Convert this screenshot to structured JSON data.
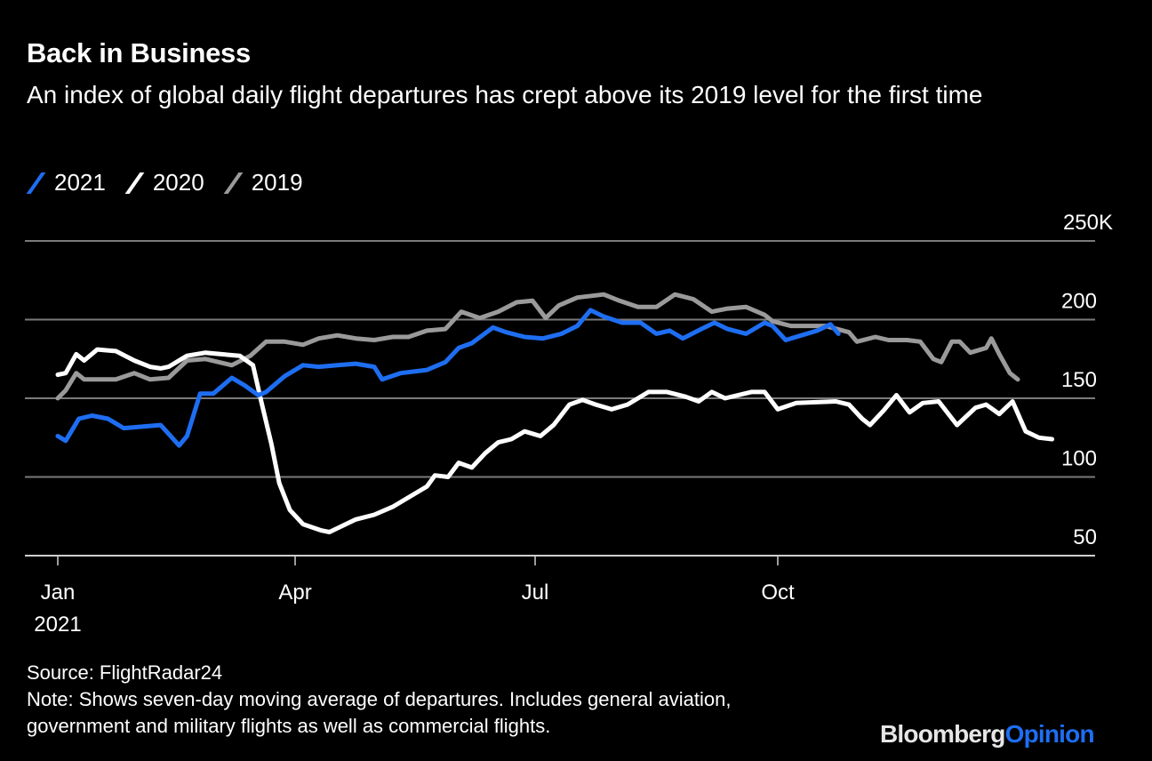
{
  "header": {
    "title": "Back in Business",
    "subtitle": "An index of global daily flight departures has crept above its 2019 level for the first time"
  },
  "footer": {
    "source": "Source: FlightRadar24",
    "note_line1": "Note: Shows seven-day moving average of departures. Includes general aviation,",
    "note_line2": "government and military flights as well as commercial flights.",
    "logo_part1": "Bloomberg",
    "logo_part2": "Opinion"
  },
  "colors": {
    "background": "#000000",
    "series_2021": "#1e6ef2",
    "series_2020": "#ffffff",
    "series_2019": "#9a9a9a",
    "grid": "#7a7a7a"
  },
  "chart_data": {
    "type": "line",
    "title": "Back in Business",
    "subtitle": "An index of global daily flight departures has crept above its 2019 level for the first time",
    "xlabel": "",
    "ylabel": "",
    "x_unit": "day of year (0 = Jan 1)",
    "ylim": [
      50,
      250
    ],
    "xlim": [
      -12,
      394
    ],
    "grid": true,
    "legend": "top-left",
    "y_ticks": [
      {
        "value": 50,
        "label": "50"
      },
      {
        "value": 100,
        "label": "100"
      },
      {
        "value": 150,
        "label": "150"
      },
      {
        "value": 200,
        "label": "200"
      },
      {
        "value": 250,
        "label": "250K"
      }
    ],
    "x_ticks": [
      {
        "value": 0,
        "label": "Jan",
        "sublabel": "2021"
      },
      {
        "value": 90,
        "label": "Apr",
        "sublabel": ""
      },
      {
        "value": 181,
        "label": "Jul",
        "sublabel": ""
      },
      {
        "value": 273,
        "label": "Oct",
        "sublabel": ""
      }
    ],
    "series": [
      {
        "name": "2019",
        "color": "#9a9a9a",
        "x": [
          0,
          3,
          7,
          10,
          22,
          29,
          35,
          42,
          49,
          56,
          66,
          73,
          79,
          86,
          93,
          99,
          106,
          113,
          120,
          127,
          133,
          140,
          147,
          153,
          160,
          167,
          174,
          180,
          185,
          190,
          197,
          207,
          213,
          220,
          227,
          234,
          241,
          248,
          254,
          261,
          268,
          271,
          278,
          285,
          291,
          300,
          303,
          310,
          315,
          322,
          327,
          332,
          335,
          339,
          342,
          346,
          352,
          354,
          357,
          361,
          364
        ],
        "values": [
          150,
          155,
          166,
          162,
          162,
          166,
          162,
          163,
          174,
          175,
          171,
          177,
          186,
          186,
          184,
          188,
          190,
          188,
          187,
          189,
          189,
          193,
          194,
          205,
          201,
          205,
          211,
          212,
          201,
          209,
          214,
          216,
          212,
          208,
          208,
          216,
          213,
          205,
          207,
          208,
          203,
          199,
          196,
          196,
          196,
          192,
          186,
          189,
          187,
          187,
          186,
          175,
          173,
          186,
          186,
          179,
          182,
          188,
          178,
          166,
          162
        ]
      },
      {
        "name": "2020",
        "color": "#ffffff",
        "x": [
          0,
          3,
          7,
          10,
          15,
          22,
          29,
          35,
          39,
          42,
          49,
          56,
          62,
          69,
          74,
          77,
          81,
          84,
          88,
          93,
          100,
          103,
          108,
          113,
          120,
          127,
          133,
          140,
          143,
          148,
          152,
          157,
          162,
          167,
          172,
          177,
          183,
          188,
          194,
          199,
          204,
          210,
          216,
          224,
          231,
          238,
          243,
          248,
          253,
          263,
          268,
          273,
          280,
          295,
          300,
          305,
          308,
          313,
          318,
          323,
          328,
          334,
          341,
          348,
          352,
          357,
          362,
          367,
          372,
          377
        ],
        "values": [
          165,
          166,
          178,
          174,
          181,
          180,
          174,
          170,
          169,
          170,
          177,
          179,
          178,
          177,
          171,
          149,
          121,
          96,
          79,
          70,
          66,
          65,
          69,
          73,
          76,
          81,
          87,
          94,
          101,
          100,
          109,
          106,
          115,
          122,
          124,
          129,
          126,
          133,
          146,
          149,
          146,
          143,
          146,
          154,
          154,
          151,
          148,
          154,
          150,
          154,
          154,
          143,
          147,
          148,
          146,
          137,
          133,
          142,
          152,
          141,
          147,
          148,
          133,
          144,
          146,
          140,
          148,
          129,
          125,
          124
        ]
      },
      {
        "name": "2021",
        "color": "#1e6ef2",
        "x": [
          0,
          3,
          8,
          13,
          19,
          25,
          32,
          39,
          46,
          49,
          54,
          59,
          66,
          71,
          76,
          79,
          86,
          93,
          99,
          106,
          113,
          120,
          123,
          130,
          140,
          147,
          152,
          157,
          165,
          170,
          177,
          184,
          191,
          197,
          202,
          207,
          214,
          221,
          227,
          232,
          237,
          244,
          249,
          254,
          261,
          268,
          271,
          276,
          282,
          288,
          293,
          296
        ],
        "values": [
          126,
          123,
          137,
          139,
          137,
          131,
          132,
          133,
          120,
          126,
          153,
          153,
          163,
          158,
          152,
          154,
          164,
          171,
          170,
          171,
          172,
          170,
          162,
          166,
          168,
          173,
          182,
          185,
          195,
          192,
          189,
          188,
          191,
          196,
          206,
          202,
          198,
          198,
          191,
          193,
          188,
          194,
          198,
          194,
          191,
          198,
          196,
          187,
          190,
          193,
          197,
          191
        ]
      }
    ]
  }
}
